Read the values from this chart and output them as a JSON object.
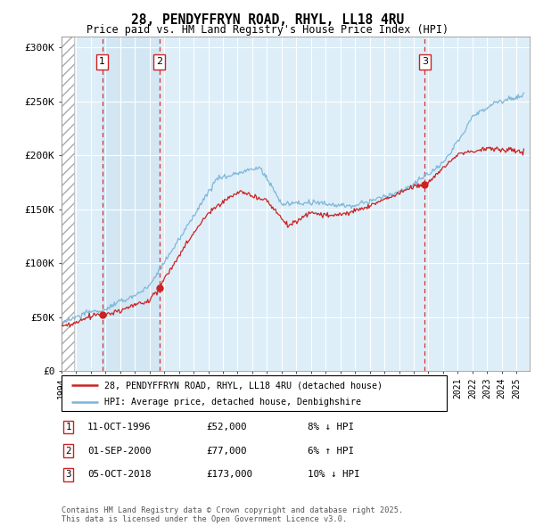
{
  "title_line1": "28, PENDYFFRYN ROAD, RHYL, LL18 4RU",
  "title_line2": "Price paid vs. HM Land Registry's House Price Index (HPI)",
  "xlim_start": 1994.0,
  "xlim_end": 2025.9,
  "ylim": [
    0,
    310000
  ],
  "yticks": [
    0,
    50000,
    100000,
    150000,
    200000,
    250000,
    300000
  ],
  "ytick_labels": [
    "£0",
    "£50K",
    "£100K",
    "£150K",
    "£200K",
    "£250K",
    "£300K"
  ],
  "sale_dates": [
    1996.78,
    2000.67,
    2018.76
  ],
  "sale_prices": [
    52000,
    77000,
    173000
  ],
  "sale_labels": [
    "1",
    "2",
    "3"
  ],
  "hpi_color": "#7ab4d8",
  "price_color": "#cc2222",
  "bg_color": "#ddeef8",
  "legend_label_price": "28, PENDYFFRYN ROAD, RHYL, LL18 4RU (detached house)",
  "legend_label_hpi": "HPI: Average price, detached house, Denbighshire",
  "table_rows": [
    {
      "label": "1",
      "date": "11-OCT-1996",
      "price": "£52,000",
      "pct": "8% ↓ HPI"
    },
    {
      "label": "2",
      "date": "01-SEP-2000",
      "price": "£77,000",
      "pct": "6% ↑ HPI"
    },
    {
      "label": "3",
      "date": "05-OCT-2018",
      "price": "£173,000",
      "pct": "10% ↓ HPI"
    }
  ],
  "footnote": "Contains HM Land Registry data © Crown copyright and database right 2025.\nThis data is licensed under the Open Government Licence v3.0.",
  "hatch_end": 1994.83
}
